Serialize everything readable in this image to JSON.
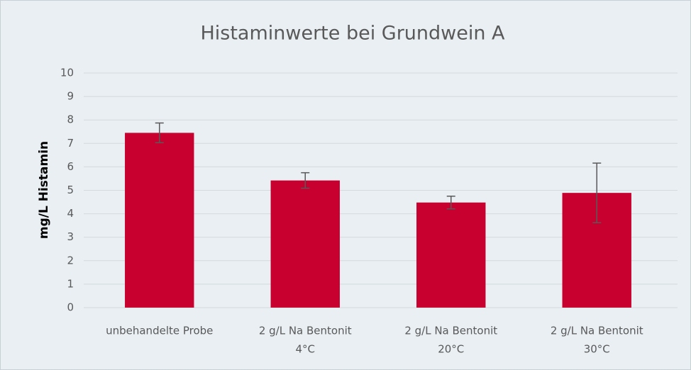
{
  "chart_data": {
    "type": "bar",
    "title": "Histaminwerte bei Grundwein A",
    "ylabel": "mg/L Histamin",
    "categories": [
      [
        "unbehandelte Probe"
      ],
      [
        "2 g/L Na Bentonit",
        "4°C"
      ],
      [
        "2 g/L Na Bentonit",
        "20°C"
      ],
      [
        "2 g/L Na Bentonit",
        "30°C"
      ]
    ],
    "values": [
      7.45,
      5.42,
      4.48,
      4.89
    ],
    "errors": [
      0.42,
      0.33,
      0.27,
      1.27
    ],
    "color": "#c8002f",
    "ylim": [
      0,
      10
    ],
    "yticks": [
      0,
      1,
      2,
      3,
      4,
      5,
      6,
      7,
      8,
      9,
      10
    ],
    "grid": true
  }
}
